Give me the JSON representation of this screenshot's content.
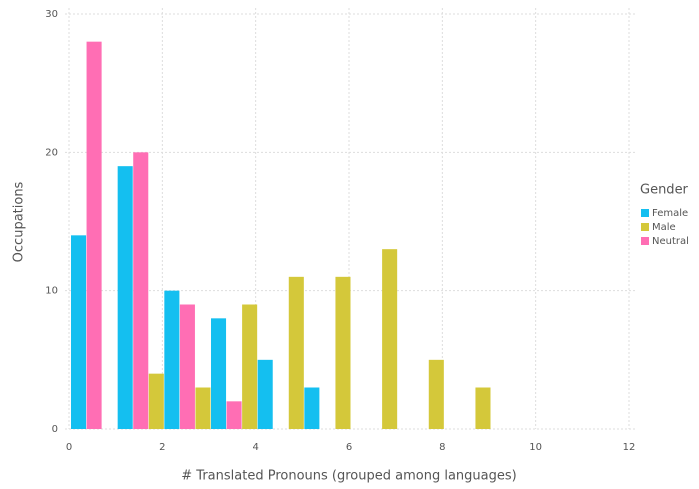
{
  "chart_data": {
    "type": "bar",
    "x": [
      0,
      1,
      2,
      3,
      4,
      5,
      6,
      7,
      8
    ],
    "series": [
      {
        "name": "Female",
        "color": "#14bff0",
        "values": [
          14,
          19,
          10,
          8,
          5,
          3,
          0,
          0,
          0
        ]
      },
      {
        "name": "Male",
        "color": "#d4c83a",
        "values": [
          0,
          4,
          3,
          9,
          11,
          11,
          13,
          5,
          3
        ]
      },
      {
        "name": "Neutral",
        "color": "#ff6eb4",
        "values": [
          28,
          20,
          9,
          2,
          0,
          0,
          0,
          0,
          0
        ]
      }
    ],
    "xlabel": "# Translated Pronouns (grouped among languages)",
    "ylabel": "Occupations",
    "legend_title": "Gender",
    "legend": "right",
    "xlim": [
      0,
      12
    ],
    "xticks": [
      0,
      2,
      4,
      6,
      8,
      10,
      12
    ],
    "ylim": [
      0,
      30
    ],
    "yticks": [
      0,
      10,
      20,
      30
    ],
    "grid": true
  }
}
